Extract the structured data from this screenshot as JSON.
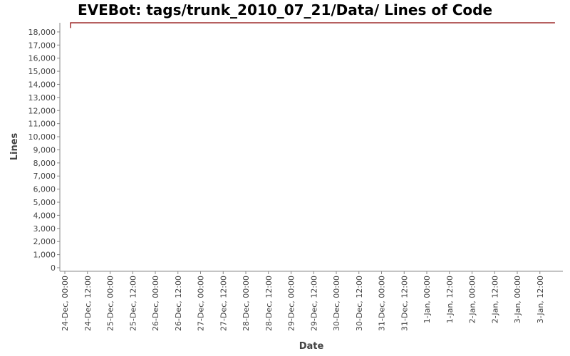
{
  "chart_data": {
    "type": "line",
    "title": "EVEBot: tags/trunk_2010_07_21/Data/ Lines of Code",
    "xlabel": "Date",
    "ylabel": "Lines",
    "ylim": [
      0,
      18700
    ],
    "y_ticks": [
      {
        "value": 0,
        "label": "0"
      },
      {
        "value": 1000,
        "label": "1,000"
      },
      {
        "value": 2000,
        "label": "2,000"
      },
      {
        "value": 3000,
        "label": "3,000"
      },
      {
        "value": 4000,
        "label": "4,000"
      },
      {
        "value": 5000,
        "label": "5,000"
      },
      {
        "value": 6000,
        "label": "6,000"
      },
      {
        "value": 7000,
        "label": "7,000"
      },
      {
        "value": 8000,
        "label": "8,000"
      },
      {
        "value": 9000,
        "label": "9,000"
      },
      {
        "value": 10000,
        "label": "10,000"
      },
      {
        "value": 11000,
        "label": "11,000"
      },
      {
        "value": 12000,
        "label": "12,000"
      },
      {
        "value": 13000,
        "label": "13,000"
      },
      {
        "value": 14000,
        "label": "14,000"
      },
      {
        "value": 15000,
        "label": "15,000"
      },
      {
        "value": 16000,
        "label": "16,000"
      },
      {
        "value": 17000,
        "label": "17,000"
      },
      {
        "value": 18000,
        "label": "18,000"
      }
    ],
    "x_ticks": [
      "24-Dec, 00:00",
      "24-Dec, 12:00",
      "25-Dec, 00:00",
      "25-Dec, 12:00",
      "26-Dec, 00:00",
      "26-Dec, 12:00",
      "27-Dec, 00:00",
      "27-Dec, 12:00",
      "28-Dec, 00:00",
      "28-Dec, 12:00",
      "29-Dec, 00:00",
      "29-Dec, 12:00",
      "30-Dec, 00:00",
      "30-Dec, 12:00",
      "31-Dec, 00:00",
      "31-Dec, 12:00",
      "1-Jan, 00:00",
      "1-Jan, 12:00",
      "2-Jan, 00:00",
      "2-Jan, 12:00",
      "3-Jan, 00:00",
      "3-Jan, 12:00"
    ],
    "series": [
      {
        "color": "#8b0000",
        "points": [
          {
            "x": "24-Dec, 03:00",
            "y": 18300
          },
          {
            "x": "24-Dec, 03:00",
            "y": 18700
          },
          {
            "x": "3-Jan, 20:00",
            "y": 18700
          }
        ]
      }
    ],
    "grid": false,
    "legend": "none"
  }
}
